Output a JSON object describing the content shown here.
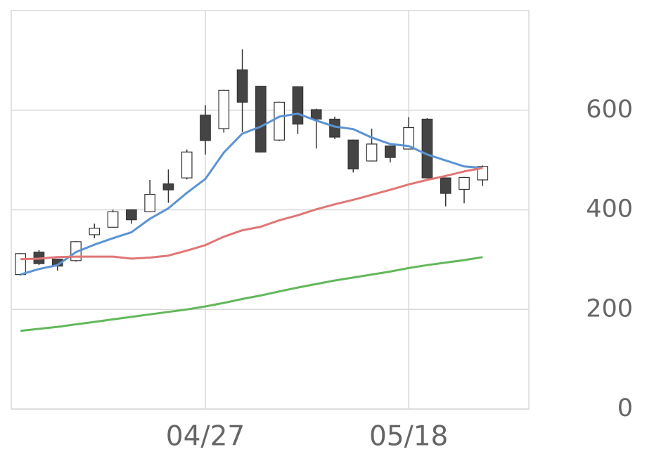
{
  "chart_data": {
    "type": "candlestick",
    "categories": [
      null,
      null,
      null,
      null,
      null,
      null,
      null,
      null,
      null,
      null,
      "04/27",
      null,
      null,
      null,
      null,
      null,
      null,
      null,
      null,
      null,
      null,
      "05/18",
      null,
      null,
      null,
      null,
      null,
      null
    ],
    "open": [
      270,
      315,
      301,
      298,
      350,
      365,
      400,
      396,
      452,
      464,
      590,
      563,
      681,
      648,
      540,
      647,
      601,
      582,
      540,
      498,
      528,
      522,
      582,
      464,
      441,
      460,
      null,
      null
    ],
    "high": [
      313,
      319,
      302,
      337,
      372,
      400,
      401,
      460,
      481,
      521,
      610,
      641,
      722,
      649,
      617,
      648,
      603,
      587,
      541,
      563,
      529,
      586,
      584,
      465,
      466,
      489,
      null,
      null
    ],
    "low": [
      268,
      289,
      278,
      296,
      343,
      364,
      372,
      395,
      414,
      461,
      511,
      555,
      556,
      515,
      538,
      552,
      523,
      542,
      475,
      497,
      495,
      521,
      463,
      407,
      413,
      448,
      null,
      null
    ],
    "close": [
      312,
      292,
      287,
      336,
      363,
      396,
      380,
      431,
      440,
      516,
      539,
      640,
      616,
      516,
      616,
      572,
      582,
      546,
      482,
      532,
      505,
      565,
      464,
      433,
      465,
      487,
      null,
      null
    ],
    "up_color": "#ffffff",
    "down_color": "#444444",
    "series": [
      {
        "color": "#5b93d3",
        "values": [
          270,
          281,
          289,
          315,
          330,
          343,
          355,
          382,
          403,
          434,
          462,
          515,
          553,
          567,
          587,
          593,
          579,
          567,
          562,
          545,
          532,
          528,
          511,
          499,
          487,
          484,
          null,
          null
        ]
      },
      {
        "color": "#e07676",
        "values": [
          301,
          302,
          305,
          306,
          306,
          306,
          302,
          304,
          308,
          318,
          329,
          346,
          359,
          366,
          379,
          389,
          401,
          411,
          420,
          430,
          440,
          451,
          460,
          468,
          477,
          484,
          null,
          null
        ]
      },
      {
        "color": "#62b85a",
        "values": [
          157,
          161,
          165,
          170,
          175,
          180,
          185,
          190,
          195,
          200,
          206,
          213,
          221,
          228,
          236,
          244,
          251,
          258,
          264,
          270,
          276,
          283,
          289,
          294,
          299,
          305,
          null,
          null
        ]
      }
    ],
    "ylim": [
      0,
      800
    ],
    "yticks": [
      0,
      200,
      400,
      600
    ],
    "grid": true
  }
}
